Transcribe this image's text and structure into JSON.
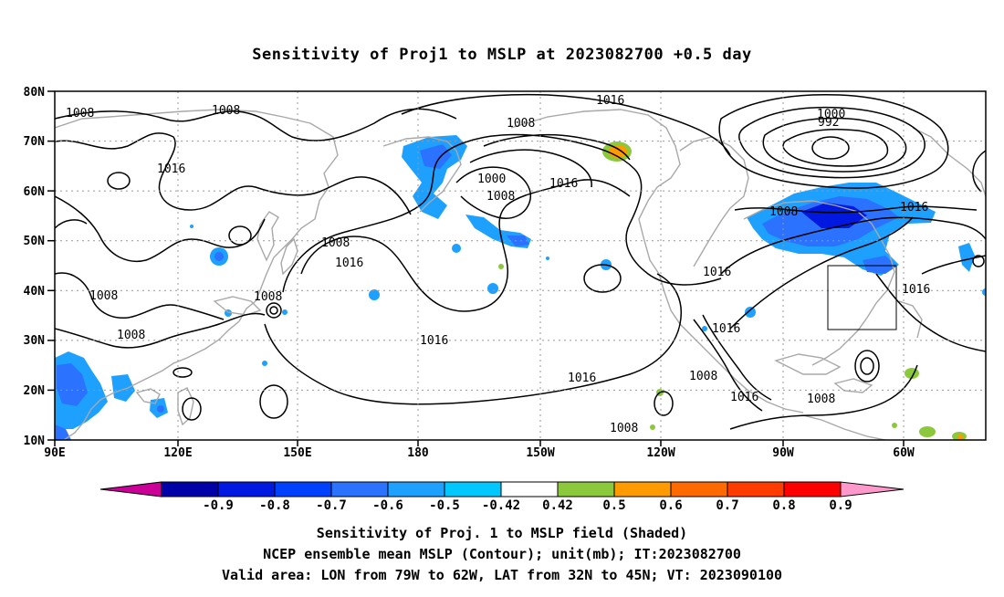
{
  "title": "Sensitivity of Proj1 to MSLP at 2023082700 +0.5 day",
  "map": {
    "lat_labels": [
      "80N",
      "70N",
      "60N",
      "50N",
      "40N",
      "30N",
      "20N",
      "10N"
    ],
    "lon_labels": [
      "90E",
      "120E",
      "150E",
      "180",
      "150W",
      "120W",
      "90W",
      "60W"
    ],
    "contour_labels": [
      {
        "text": "1008"
      },
      {
        "text": "1008"
      },
      {
        "text": "1016"
      },
      {
        "text": "1008"
      },
      {
        "text": "1016"
      },
      {
        "text": "1008"
      },
      {
        "text": "1008"
      },
      {
        "text": "1008"
      },
      {
        "text": "1008"
      },
      {
        "text": "1000"
      },
      {
        "text": "1008"
      },
      {
        "text": "1016"
      },
      {
        "text": "1016"
      },
      {
        "text": "1016"
      },
      {
        "text": "1016"
      },
      {
        "text": "1000"
      },
      {
        "text": "992"
      },
      {
        "text": "1008"
      },
      {
        "text": "1016"
      },
      {
        "text": "1016"
      },
      {
        "text": "1016"
      },
      {
        "text": "1016"
      },
      {
        "text": "1008"
      },
      {
        "text": "1016"
      },
      {
        "text": "1008"
      },
      {
        "text": "1008"
      }
    ],
    "valid_area": {
      "lon_from": "79W",
      "lon_to": "62W",
      "lat_from": "32N",
      "lat_to": "45N"
    }
  },
  "colorbar": {
    "labels": [
      "-0.9",
      "-0.8",
      "-0.7",
      "-0.6",
      "-0.5",
      "-0.42",
      "0.42",
      "0.5",
      "0.6",
      "0.7",
      "0.8",
      "0.9"
    ],
    "colors": [
      "#0000a8",
      "#0018e0",
      "#0040ff",
      "#2a72ff",
      "#1ea0ff",
      "#00c8ff",
      "#ffffff",
      "#8cc83c",
      "#ff9a00",
      "#ff6a00",
      "#ff3c00",
      "#ff0000"
    ],
    "end_low": "#cc0099",
    "end_high": "#ff99cc"
  },
  "footer": {
    "line1": "Sensitivity of Proj. 1 to MSLP field (Shaded)",
    "line2": "NCEP ensemble mean MSLP (Contour); unit(mb); IT:2023082700",
    "line3": "Valid area: LON from 79W to 62W, LAT from 32N to 45N; VT: 2023090100"
  }
}
